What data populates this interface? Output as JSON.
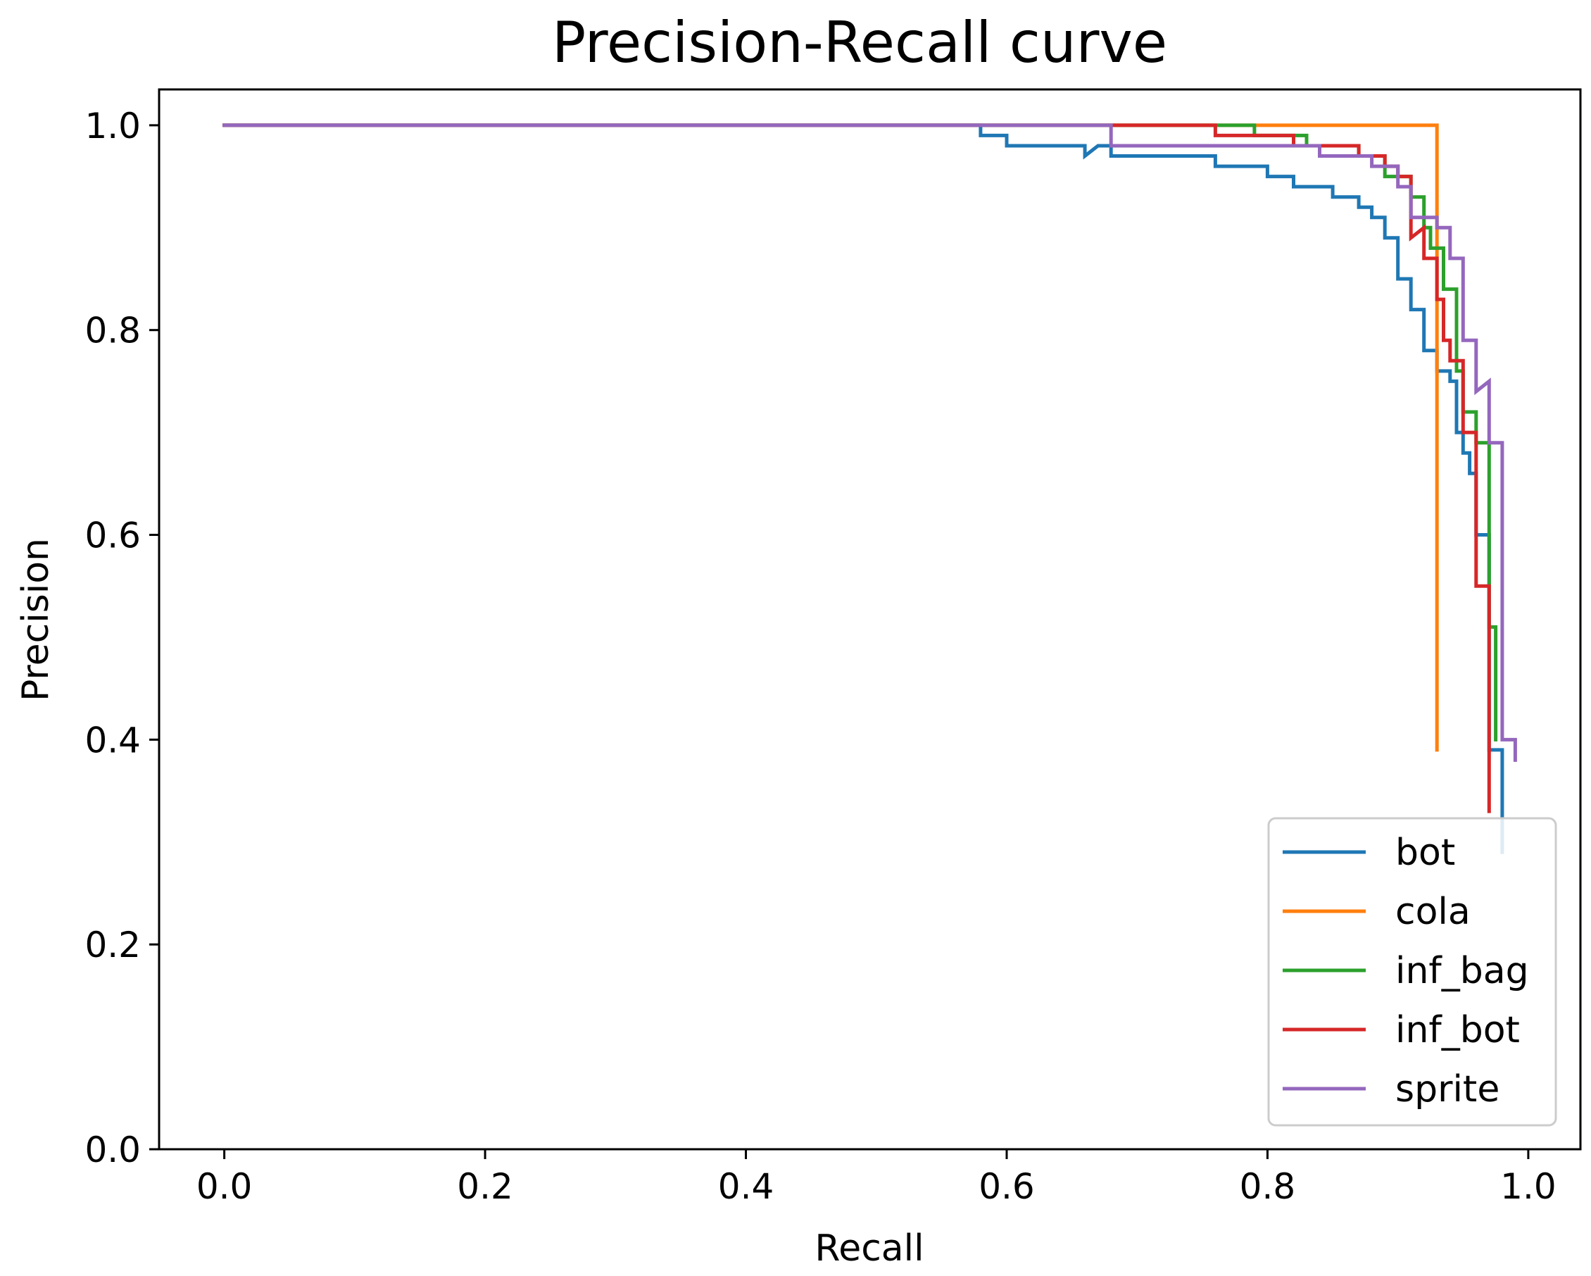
{
  "chart_data": {
    "type": "line",
    "title": "Precision-Recall curve",
    "xlabel": "Recall",
    "ylabel": "Precision",
    "xlim": [
      -0.05,
      1.04
    ],
    "ylim": [
      0.0,
      1.035
    ],
    "xticks": [
      0.0,
      0.2,
      0.4,
      0.6,
      0.8,
      1.0
    ],
    "xtick_labels": [
      "0.0",
      "0.2",
      "0.4",
      "0.6",
      "0.8",
      "1.0"
    ],
    "yticks": [
      0.0,
      0.2,
      0.4,
      0.6,
      0.8,
      1.0
    ],
    "ytick_labels": [
      "0.0",
      "0.2",
      "0.4",
      "0.6",
      "0.8",
      "1.0"
    ],
    "grid": false,
    "legend_position": "lower-right",
    "series": [
      {
        "name": "bot",
        "color": "#1f77b4",
        "points": [
          [
            0.0,
            1.0
          ],
          [
            0.58,
            1.0
          ],
          [
            0.58,
            0.99
          ],
          [
            0.6,
            0.99
          ],
          [
            0.6,
            0.98
          ],
          [
            0.66,
            0.98
          ],
          [
            0.66,
            0.97
          ],
          [
            0.67,
            0.98
          ],
          [
            0.68,
            0.98
          ],
          [
            0.68,
            0.97
          ],
          [
            0.76,
            0.97
          ],
          [
            0.76,
            0.96
          ],
          [
            0.8,
            0.96
          ],
          [
            0.8,
            0.95
          ],
          [
            0.82,
            0.95
          ],
          [
            0.82,
            0.94
          ],
          [
            0.85,
            0.94
          ],
          [
            0.85,
            0.93
          ],
          [
            0.87,
            0.93
          ],
          [
            0.87,
            0.92
          ],
          [
            0.88,
            0.92
          ],
          [
            0.88,
            0.91
          ],
          [
            0.89,
            0.91
          ],
          [
            0.89,
            0.89
          ],
          [
            0.9,
            0.89
          ],
          [
            0.9,
            0.85
          ],
          [
            0.91,
            0.85
          ],
          [
            0.91,
            0.82
          ],
          [
            0.92,
            0.82
          ],
          [
            0.92,
            0.78
          ],
          [
            0.93,
            0.78
          ],
          [
            0.93,
            0.76
          ],
          [
            0.94,
            0.76
          ],
          [
            0.94,
            0.75
          ],
          [
            0.945,
            0.75
          ],
          [
            0.945,
            0.7
          ],
          [
            0.95,
            0.7
          ],
          [
            0.95,
            0.68
          ],
          [
            0.955,
            0.68
          ],
          [
            0.955,
            0.66
          ],
          [
            0.96,
            0.66
          ],
          [
            0.96,
            0.6
          ],
          [
            0.97,
            0.6
          ],
          [
            0.97,
            0.39
          ],
          [
            0.98,
            0.39
          ],
          [
            0.98,
            0.29
          ]
        ]
      },
      {
        "name": "cola",
        "color": "#ff7f0e",
        "points": [
          [
            0.0,
            1.0
          ],
          [
            0.93,
            1.0
          ],
          [
            0.93,
            0.39
          ]
        ]
      },
      {
        "name": "inf_bag",
        "color": "#2ca02c",
        "points": [
          [
            0.0,
            1.0
          ],
          [
            0.79,
            1.0
          ],
          [
            0.79,
            0.99
          ],
          [
            0.83,
            0.99
          ],
          [
            0.83,
            0.98
          ],
          [
            0.87,
            0.98
          ],
          [
            0.87,
            0.97
          ],
          [
            0.89,
            0.97
          ],
          [
            0.89,
            0.95
          ],
          [
            0.91,
            0.95
          ],
          [
            0.91,
            0.93
          ],
          [
            0.92,
            0.93
          ],
          [
            0.92,
            0.9
          ],
          [
            0.925,
            0.9
          ],
          [
            0.925,
            0.88
          ],
          [
            0.935,
            0.88
          ],
          [
            0.935,
            0.84
          ],
          [
            0.945,
            0.84
          ],
          [
            0.945,
            0.76
          ],
          [
            0.95,
            0.76
          ],
          [
            0.95,
            0.72
          ],
          [
            0.96,
            0.72
          ],
          [
            0.96,
            0.69
          ],
          [
            0.97,
            0.69
          ],
          [
            0.97,
            0.51
          ],
          [
            0.975,
            0.51
          ],
          [
            0.975,
            0.4
          ]
        ]
      },
      {
        "name": "inf_bot",
        "color": "#d62728",
        "points": [
          [
            0.0,
            1.0
          ],
          [
            0.76,
            1.0
          ],
          [
            0.76,
            0.99
          ],
          [
            0.82,
            0.99
          ],
          [
            0.82,
            0.98
          ],
          [
            0.87,
            0.98
          ],
          [
            0.87,
            0.97
          ],
          [
            0.89,
            0.97
          ],
          [
            0.89,
            0.96
          ],
          [
            0.9,
            0.96
          ],
          [
            0.9,
            0.95
          ],
          [
            0.91,
            0.95
          ],
          [
            0.91,
            0.89
          ],
          [
            0.92,
            0.9
          ],
          [
            0.92,
            0.87
          ],
          [
            0.93,
            0.87
          ],
          [
            0.93,
            0.83
          ],
          [
            0.935,
            0.83
          ],
          [
            0.935,
            0.79
          ],
          [
            0.94,
            0.79
          ],
          [
            0.94,
            0.77
          ],
          [
            0.95,
            0.77
          ],
          [
            0.95,
            0.7
          ],
          [
            0.96,
            0.7
          ],
          [
            0.96,
            0.55
          ],
          [
            0.97,
            0.55
          ],
          [
            0.97,
            0.33
          ]
        ]
      },
      {
        "name": "sprite",
        "color": "#9467bd",
        "points": [
          [
            0.0,
            1.0
          ],
          [
            0.68,
            1.0
          ],
          [
            0.68,
            0.98
          ],
          [
            0.84,
            0.98
          ],
          [
            0.84,
            0.97
          ],
          [
            0.88,
            0.97
          ],
          [
            0.88,
            0.96
          ],
          [
            0.9,
            0.96
          ],
          [
            0.9,
            0.94
          ],
          [
            0.91,
            0.94
          ],
          [
            0.91,
            0.91
          ],
          [
            0.93,
            0.91
          ],
          [
            0.93,
            0.9
          ],
          [
            0.94,
            0.9
          ],
          [
            0.94,
            0.87
          ],
          [
            0.95,
            0.87
          ],
          [
            0.95,
            0.79
          ],
          [
            0.96,
            0.79
          ],
          [
            0.96,
            0.74
          ],
          [
            0.97,
            0.75
          ],
          [
            0.97,
            0.69
          ],
          [
            0.98,
            0.69
          ],
          [
            0.98,
            0.4
          ],
          [
            0.99,
            0.4
          ],
          [
            0.99,
            0.38
          ]
        ]
      }
    ]
  }
}
